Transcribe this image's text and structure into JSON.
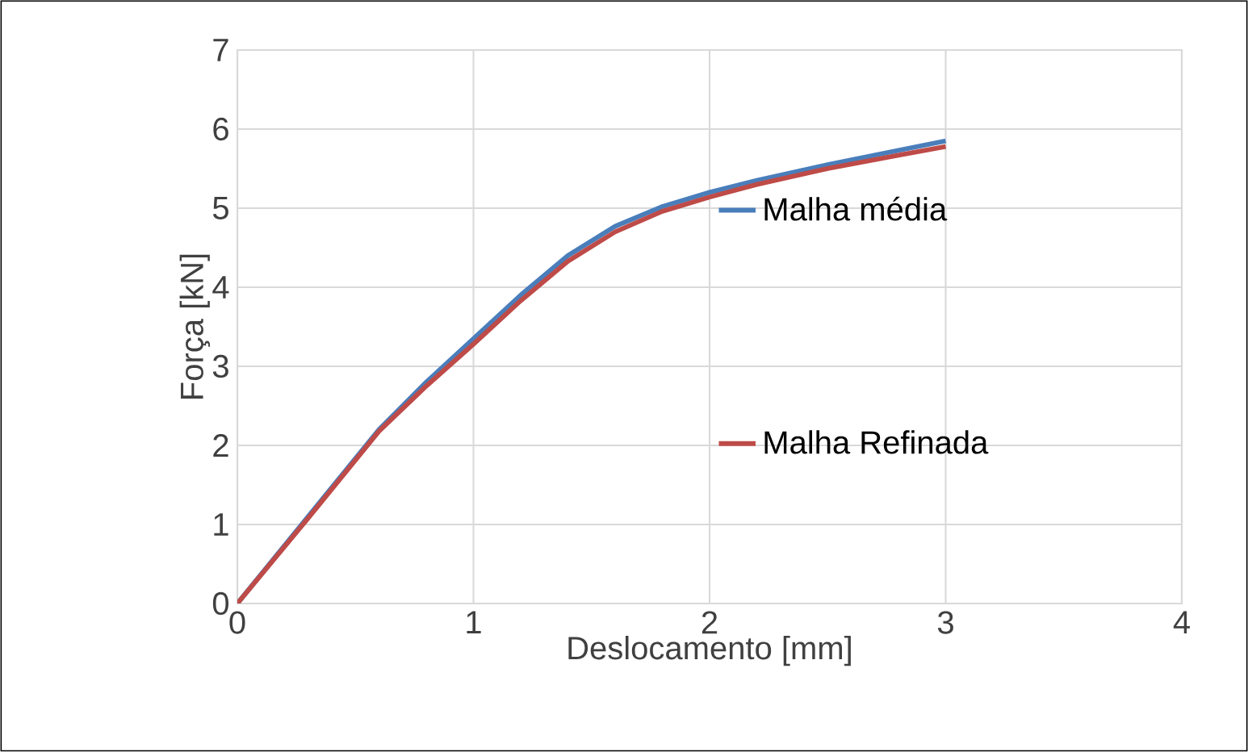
{
  "chart_data": {
    "type": "line",
    "xlabel": "Deslocamento [mm]",
    "ylabel": "Força [kN]",
    "xlim": [
      0,
      4
    ],
    "ylim": [
      0,
      7
    ],
    "xticks": [
      0,
      1,
      2,
      3,
      4
    ],
    "yticks": [
      0,
      1,
      2,
      3,
      4,
      5,
      6,
      7
    ],
    "grid": true,
    "legend": "right",
    "marker": "none",
    "line_style": "solid",
    "series": [
      {
        "name": "Malha média",
        "color": "#4a7ebb",
        "x": [
          0,
          0.3,
          0.6,
          0.8,
          1.0,
          1.2,
          1.4,
          1.6,
          1.8,
          2.0,
          2.2,
          2.5,
          2.8,
          3.0
        ],
        "values": [
          0,
          1.1,
          2.2,
          2.8,
          3.35,
          3.9,
          4.4,
          4.77,
          5.02,
          5.2,
          5.35,
          5.55,
          5.73,
          5.85
        ]
      },
      {
        "name": "Malha Refinada",
        "color": "#be4b48",
        "x": [
          0,
          0.3,
          0.6,
          0.8,
          1.0,
          1.2,
          1.4,
          1.6,
          1.8,
          2.0,
          2.2,
          2.5,
          2.8,
          3.0
        ],
        "values": [
          0,
          1.08,
          2.18,
          2.75,
          3.28,
          3.83,
          4.33,
          4.7,
          4.96,
          5.14,
          5.3,
          5.5,
          5.67,
          5.78
        ]
      }
    ]
  }
}
